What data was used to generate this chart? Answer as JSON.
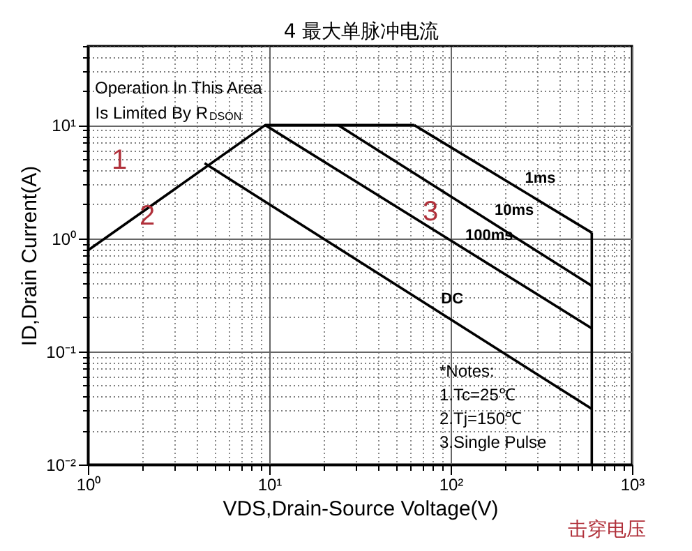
{
  "chart_data": {
    "type": "line",
    "xlabel": "VDS,Drain-Source Voltage(V)",
    "ylabel": "ID,Drain Current(A)",
    "xlim": [
      1,
      1000
    ],
    "ylim": [
      0.01,
      50
    ],
    "xticks": [
      {
        "value": 1,
        "label": "10⁰"
      },
      {
        "value": 2,
        "label": null
      },
      {
        "value": 3,
        "label": null
      },
      {
        "value": 4,
        "label": null
      },
      {
        "value": 5,
        "label": null
      },
      {
        "value": 6,
        "label": null
      },
      {
        "value": 7,
        "label": null
      },
      {
        "value": 8,
        "label": null
      },
      {
        "value": 9,
        "label": null
      },
      {
        "value": 10,
        "label": "10¹"
      },
      {
        "value": 20,
        "label": null
      },
      {
        "value": 30,
        "label": null
      },
      {
        "value": 40,
        "label": null
      },
      {
        "value": 50,
        "label": null
      },
      {
        "value": 60,
        "label": null
      },
      {
        "value": 70,
        "label": null
      },
      {
        "value": 80,
        "label": null
      },
      {
        "value": 90,
        "label": null
      },
      {
        "value": 100,
        "label": "10²"
      },
      {
        "value": 200,
        "label": null
      },
      {
        "value": 300,
        "label": null
      },
      {
        "value": 400,
        "label": null
      },
      {
        "value": 500,
        "label": null
      },
      {
        "value": 600,
        "label": null
      },
      {
        "value": 700,
        "label": null
      },
      {
        "value": 800,
        "label": null
      },
      {
        "value": 900,
        "label": null
      },
      {
        "value": 1000,
        "label": "10³"
      }
    ],
    "yticks": [
      {
        "value": 0.01,
        "label": "10⁻²"
      },
      {
        "value": 0.02,
        "label": null
      },
      {
        "value": 0.03,
        "label": null
      },
      {
        "value": 0.04,
        "label": null
      },
      {
        "value": 0.05,
        "label": null
      },
      {
        "value": 0.06,
        "label": null
      },
      {
        "value": 0.07,
        "label": null
      },
      {
        "value": 0.08,
        "label": null
      },
      {
        "value": 0.09,
        "label": null
      },
      {
        "value": 0.1,
        "label": "10⁻¹"
      },
      {
        "value": 0.2,
        "label": null
      },
      {
        "value": 0.3,
        "label": null
      },
      {
        "value": 0.4,
        "label": null
      },
      {
        "value": 0.5,
        "label": null
      },
      {
        "value": 0.6,
        "label": null
      },
      {
        "value": 0.7,
        "label": null
      },
      {
        "value": 0.8,
        "label": null
      },
      {
        "value": 0.9,
        "label": null
      },
      {
        "value": 1,
        "label": "10⁰"
      },
      {
        "value": 2,
        "label": null
      },
      {
        "value": 3,
        "label": null
      },
      {
        "value": 4,
        "label": null
      },
      {
        "value": 5,
        "label": null
      },
      {
        "value": 6,
        "label": null
      },
      {
        "value": 7,
        "label": null
      },
      {
        "value": 8,
        "label": null
      },
      {
        "value": 9,
        "label": null
      },
      {
        "value": 10,
        "label": "10¹"
      },
      {
        "value": 20,
        "label": null
      },
      {
        "value": 30,
        "label": null
      },
      {
        "value": 40,
        "label": null
      },
      {
        "value": 50,
        "label": null
      }
    ],
    "log": "xy",
    "grid": true,
    "marker": "none",
    "line_style": "solid",
    "series": [
      {
        "color": "#000000",
        "x": [
          1,
          9.5,
          63
        ],
        "values": [
          0.78,
          10,
          10
        ]
      },
      {
        "name": "1ms",
        "color": "#000000",
        "x": [
          63,
          600
        ],
        "values": [
          10,
          1.12
        ]
      },
      {
        "name": "10ms",
        "color": "#000000",
        "x": [
          24,
          600
        ],
        "values": [
          10,
          0.38
        ]
      },
      {
        "name": "100ms",
        "color": "#000000",
        "x": [
          9.5,
          600
        ],
        "values": [
          10,
          0.16
        ]
      },
      {
        "name": "DC",
        "color": "#000000",
        "x": [
          4.4,
          600
        ],
        "values": [
          4.6,
          0.031
        ]
      },
      {
        "color": "#000000",
        "x": [
          600,
          600
        ],
        "values": [
          1.12,
          0.01
        ]
      }
    ],
    "annotations": [
      "Operation In This Area",
      "Is Limited By R$_{DSON}$",
      "1",
      "2",
      "3",
      "*Notes:",
      "1.Tc=25℃",
      "2.Tj=150℃",
      "3.Single Pulse",
      "4 最大单脉冲电流",
      "击穿电压"
    ]
  }
}
